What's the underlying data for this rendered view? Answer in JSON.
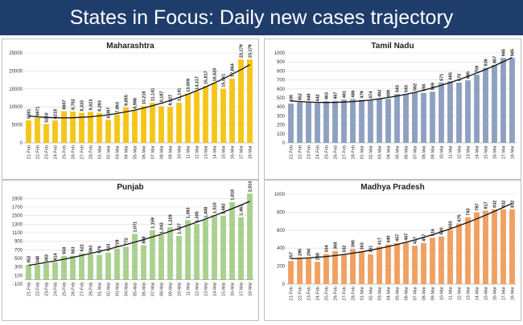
{
  "page": {
    "title": "States in Focus: Daily new cases trajectory"
  },
  "colors": {
    "banner": "#1f3d6b",
    "trend": "#111111",
    "grid": "#d9d9d9"
  },
  "chart_data": [
    {
      "type": "bar",
      "title": "Maharashtra",
      "color": "#f5c518",
      "trendline": true,
      "categories": [
        "21-Feb",
        "22-Feb",
        "23-Feb",
        "24-Feb",
        "25-Feb",
        "26-Feb",
        "27-Feb",
        "28-Feb",
        "01-Mar",
        "02-Mar",
        "03-Mar",
        "04-Mar",
        "05-Mar",
        "06-Mar",
        "07-Mar",
        "08-Mar",
        "09-Mar",
        "10-Mar",
        "11-Mar",
        "12-Mar",
        "13-Mar",
        "14-Mar",
        "15-Mar",
        "16-Mar",
        "17-Mar",
        "18-Mar"
      ],
      "values": [
        6281,
        6971,
        5210,
        6218,
        8807,
        8702,
        8333,
        8623,
        8293,
        6397,
        7863,
        9855,
        8998,
        10216,
        11141,
        10187,
        9927,
        11141,
        13659,
        14317,
        15817,
        16620,
        15051,
        17864,
        23179,
        23179
      ],
      "labels": [
        "6281",
        "6971",
        "5210",
        "6218",
        "8807",
        "8,702",
        "8,333",
        "8,623",
        "8,293",
        "6,397",
        "7,863",
        "9,855",
        "8,998",
        "10,216",
        "11,141",
        "10,187",
        "9,927",
        "11,141",
        "13,659",
        "14,317",
        "15,817",
        "16,620",
        "15,051",
        "17,864",
        "23,179",
        "23,179"
      ],
      "ylim": [
        0,
        25000
      ],
      "yticks": [
        "0",
        "5000",
        "10000",
        "15000",
        "20000",
        "25000"
      ],
      "ytick_values": [
        0,
        5000,
        10000,
        15000,
        20000,
        25000
      ]
    },
    {
      "type": "bar",
      "title": "Tamil Nadu",
      "color": "#8ea0bf",
      "trendline": true,
      "categories": [
        "21-Feb",
        "22-Feb",
        "23-Feb",
        "24-Feb",
        "25-Feb",
        "26-Feb",
        "27-Feb",
        "28-Feb",
        "01-Mar",
        "02-Mar",
        "03-Mar",
        "04-Mar",
        "05-Mar",
        "06-Mar",
        "07-Mar",
        "08-Mar",
        "09-Mar",
        "10-Mar",
        "11-Mar",
        "12-Mar",
        "13-Mar",
        "14-Mar",
        "15-Mar",
        "16-Mar",
        "17-Mar",
        "18-Mar"
      ],
      "values": [
        436,
        452,
        449,
        442,
        463,
        467,
        481,
        486,
        479,
        474,
        492,
        489,
        543,
        543,
        562,
        556,
        569,
        671,
        685,
        670,
        695,
        759,
        836,
        867,
        945,
        945
      ],
      "labels": [
        "436",
        "452",
        "449",
        "442",
        "463",
        "467",
        "481",
        "486",
        "479",
        "474",
        "492",
        "489",
        "543",
        "543",
        "562",
        "556",
        "569",
        "671",
        "685",
        "670",
        "695",
        "759",
        "836",
        "867",
        "945",
        "945"
      ],
      "ylim": [
        0,
        1000
      ],
      "yticks": [
        "0",
        "100",
        "200",
        "300",
        "400",
        "500",
        "600",
        "700",
        "800",
        "900",
        "1000"
      ],
      "ytick_values": [
        0,
        100,
        200,
        300,
        400,
        500,
        600,
        700,
        800,
        900,
        1000
      ]
    },
    {
      "type": "bar",
      "title": "Punjab",
      "color": "#a9d08e",
      "trendline": true,
      "categories": [
        "21-Feb",
        "22-Feb",
        "23-Feb",
        "24-Feb",
        "25-Feb",
        "26-Feb",
        "27-Feb",
        "28-Feb",
        "01-Mar",
        "02-Mar",
        "03-Mar",
        "04-Mar",
        "05-Mar",
        "06-Mar",
        "07-Mar",
        "08-Mar",
        "09-Mar",
        "10-Mar",
        "11-Mar",
        "12-Mar",
        "13-Mar",
        "14-Mar",
        "15-Mar",
        "16-Mar",
        "17-Mar",
        "18-Mar"
      ],
      "values": [
        352,
        348,
        383,
        414,
        558,
        563,
        622,
        593,
        579,
        633,
        729,
        772,
        1071,
        808,
        1159,
        1043,
        1229,
        1027,
        1393,
        1305,
        1408,
        1510,
        1492,
        1818,
        1463,
        2013
      ],
      "labels": [
        "352",
        "348",
        "383",
        "414",
        "558",
        "563",
        "622",
        "593",
        "579",
        "633",
        "729",
        "772",
        "1,071",
        "808",
        "1,159",
        "1,043",
        "1,229",
        "1,027",
        "1,393",
        "1,305",
        "1,408",
        "1,510",
        "1,492",
        "1,818",
        "1,463",
        "2,013"
      ],
      "ylim": [
        -100,
        2000
      ],
      "yticks": [
        "-100",
        "100",
        "300",
        "500",
        "700",
        "900",
        "1100",
        "1300",
        "1500",
        "1700",
        "1900"
      ],
      "ytick_values": [
        -100,
        100,
        300,
        500,
        700,
        900,
        1100,
        1300,
        1500,
        1700,
        1900
      ]
    },
    {
      "type": "bar",
      "title": "Madhya Pradesh",
      "color": "#f0a060",
      "trendline": true,
      "categories": [
        "21-Feb",
        "22-Feb",
        "23-Feb",
        "24-Feb",
        "25-Feb",
        "26-Feb",
        "27-Feb",
        "28-Feb",
        "01-Mar",
        "02-Mar",
        "03-Mar",
        "04-Mar",
        "05-Mar",
        "06-Mar",
        "07-Mar",
        "08-Mar",
        "09-Mar",
        "10-Mar",
        "11-Mar",
        "12-Mar",
        "13-Mar",
        "14-Mar",
        "15-Mar",
        "16-Mar",
        "17-Mar",
        "18-Mar"
      ],
      "values": [
        257,
        295,
        294,
        248,
        334,
        368,
        332,
        390,
        363,
        331,
        417,
        440,
        457,
        467,
        427,
        457,
        516,
        530,
        603,
        675,
        743,
        797,
        817,
        832,
        832,
        832
      ],
      "labels": [
        "257",
        "295",
        "294",
        "248",
        "334",
        "368",
        "332",
        "390",
        "363",
        "331",
        "417",
        "440",
        "457",
        "467",
        "427",
        "457",
        "516",
        "530",
        "603",
        "675",
        "743",
        "797",
        "817",
        "832",
        "832",
        "832"
      ],
      "ylim": [
        0,
        1000
      ],
      "yticks": [
        "0",
        "200",
        "400",
        "600",
        "800",
        "1000"
      ],
      "ytick_values": [
        0,
        200,
        400,
        600,
        800,
        1000
      ]
    }
  ]
}
